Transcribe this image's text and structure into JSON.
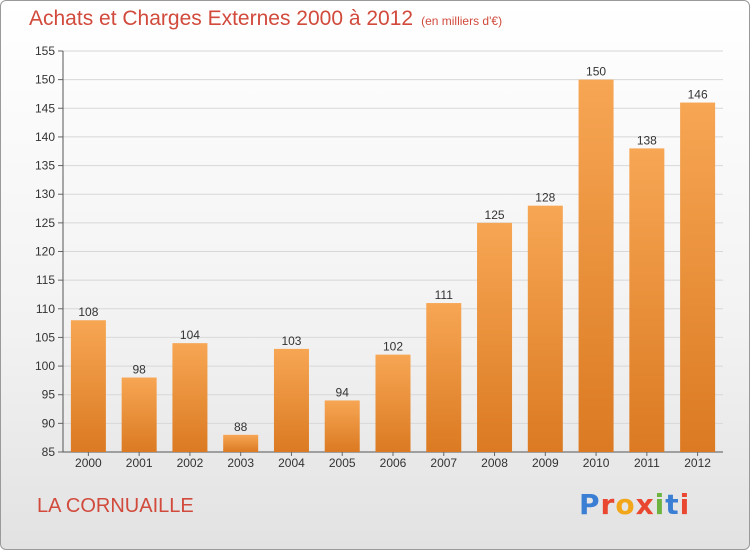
{
  "header": {
    "title": "Achats et Charges Externes 2000 à 2012",
    "subtitle": "(en milliers d'€)"
  },
  "footer": {
    "commune": "LA CORNUAILLE",
    "logo_text": "Proxiti"
  },
  "colors": {
    "title": "#d14a3c",
    "bar_top": "#f7a654",
    "bar_bottom": "#db7a22",
    "grid": "#d8d8d8",
    "logo": [
      "#3b7fd4",
      "#e9472f",
      "#f2a71b",
      "#e9472f",
      "#6db33f",
      "#3b7fd4",
      "#e9472f"
    ]
  },
  "chart_data": {
    "type": "bar",
    "title": "Achats et Charges Externes 2000 à 2012",
    "subtitle": "(en milliers d'€)",
    "categories": [
      "2000",
      "2001",
      "2002",
      "2003",
      "2004",
      "2005",
      "2006",
      "2007",
      "2008",
      "2009",
      "2010",
      "2011",
      "2012"
    ],
    "values": [
      108,
      98,
      104,
      88,
      103,
      94,
      102,
      111,
      125,
      128,
      150,
      138,
      146
    ],
    "ylim": [
      85,
      155
    ],
    "yticks": [
      85,
      90,
      95,
      100,
      105,
      110,
      115,
      120,
      125,
      130,
      135,
      140,
      145,
      150,
      155
    ],
    "grid": true,
    "data_labels": true
  }
}
